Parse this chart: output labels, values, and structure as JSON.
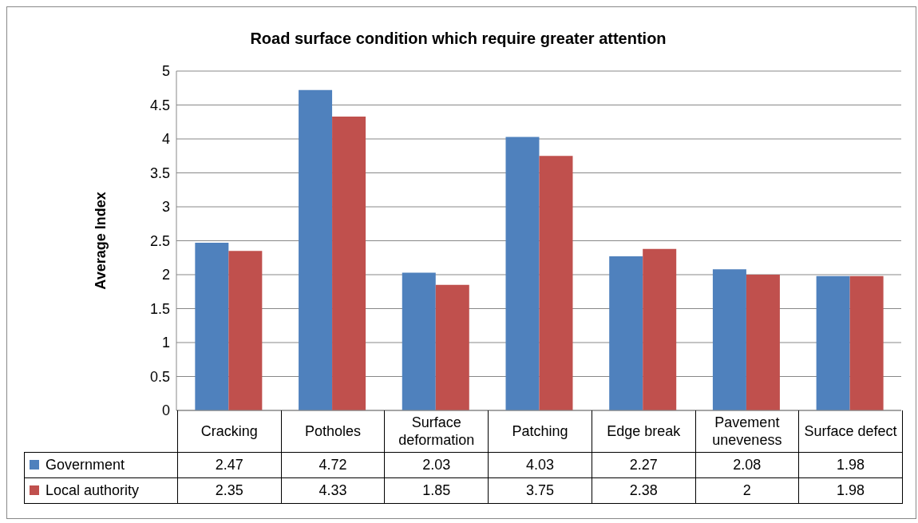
{
  "chart_data": {
    "type": "bar",
    "title": "Road surface condition which require greater attention",
    "ylabel": "Average Index",
    "categories": [
      "Cracking",
      "Potholes",
      "Surface deformation",
      "Patching",
      "Edge break",
      "Pavement uneveness",
      "Surface defect"
    ],
    "series": [
      {
        "name": "Government",
        "color": "#4f81bd",
        "values": [
          2.47,
          4.72,
          2.03,
          4.03,
          2.27,
          2.08,
          1.98
        ]
      },
      {
        "name": "Local authority",
        "color": "#c0504d",
        "values": [
          2.35,
          4.33,
          1.85,
          3.75,
          2.38,
          2,
          1.98
        ]
      }
    ],
    "ylim": [
      0,
      5
    ],
    "yticks": [
      0,
      0.5,
      1,
      1.5,
      2,
      2.5,
      3,
      3.5,
      4,
      4.5,
      5
    ],
    "grid": "y",
    "legend": "bottom",
    "data_labels": true
  }
}
